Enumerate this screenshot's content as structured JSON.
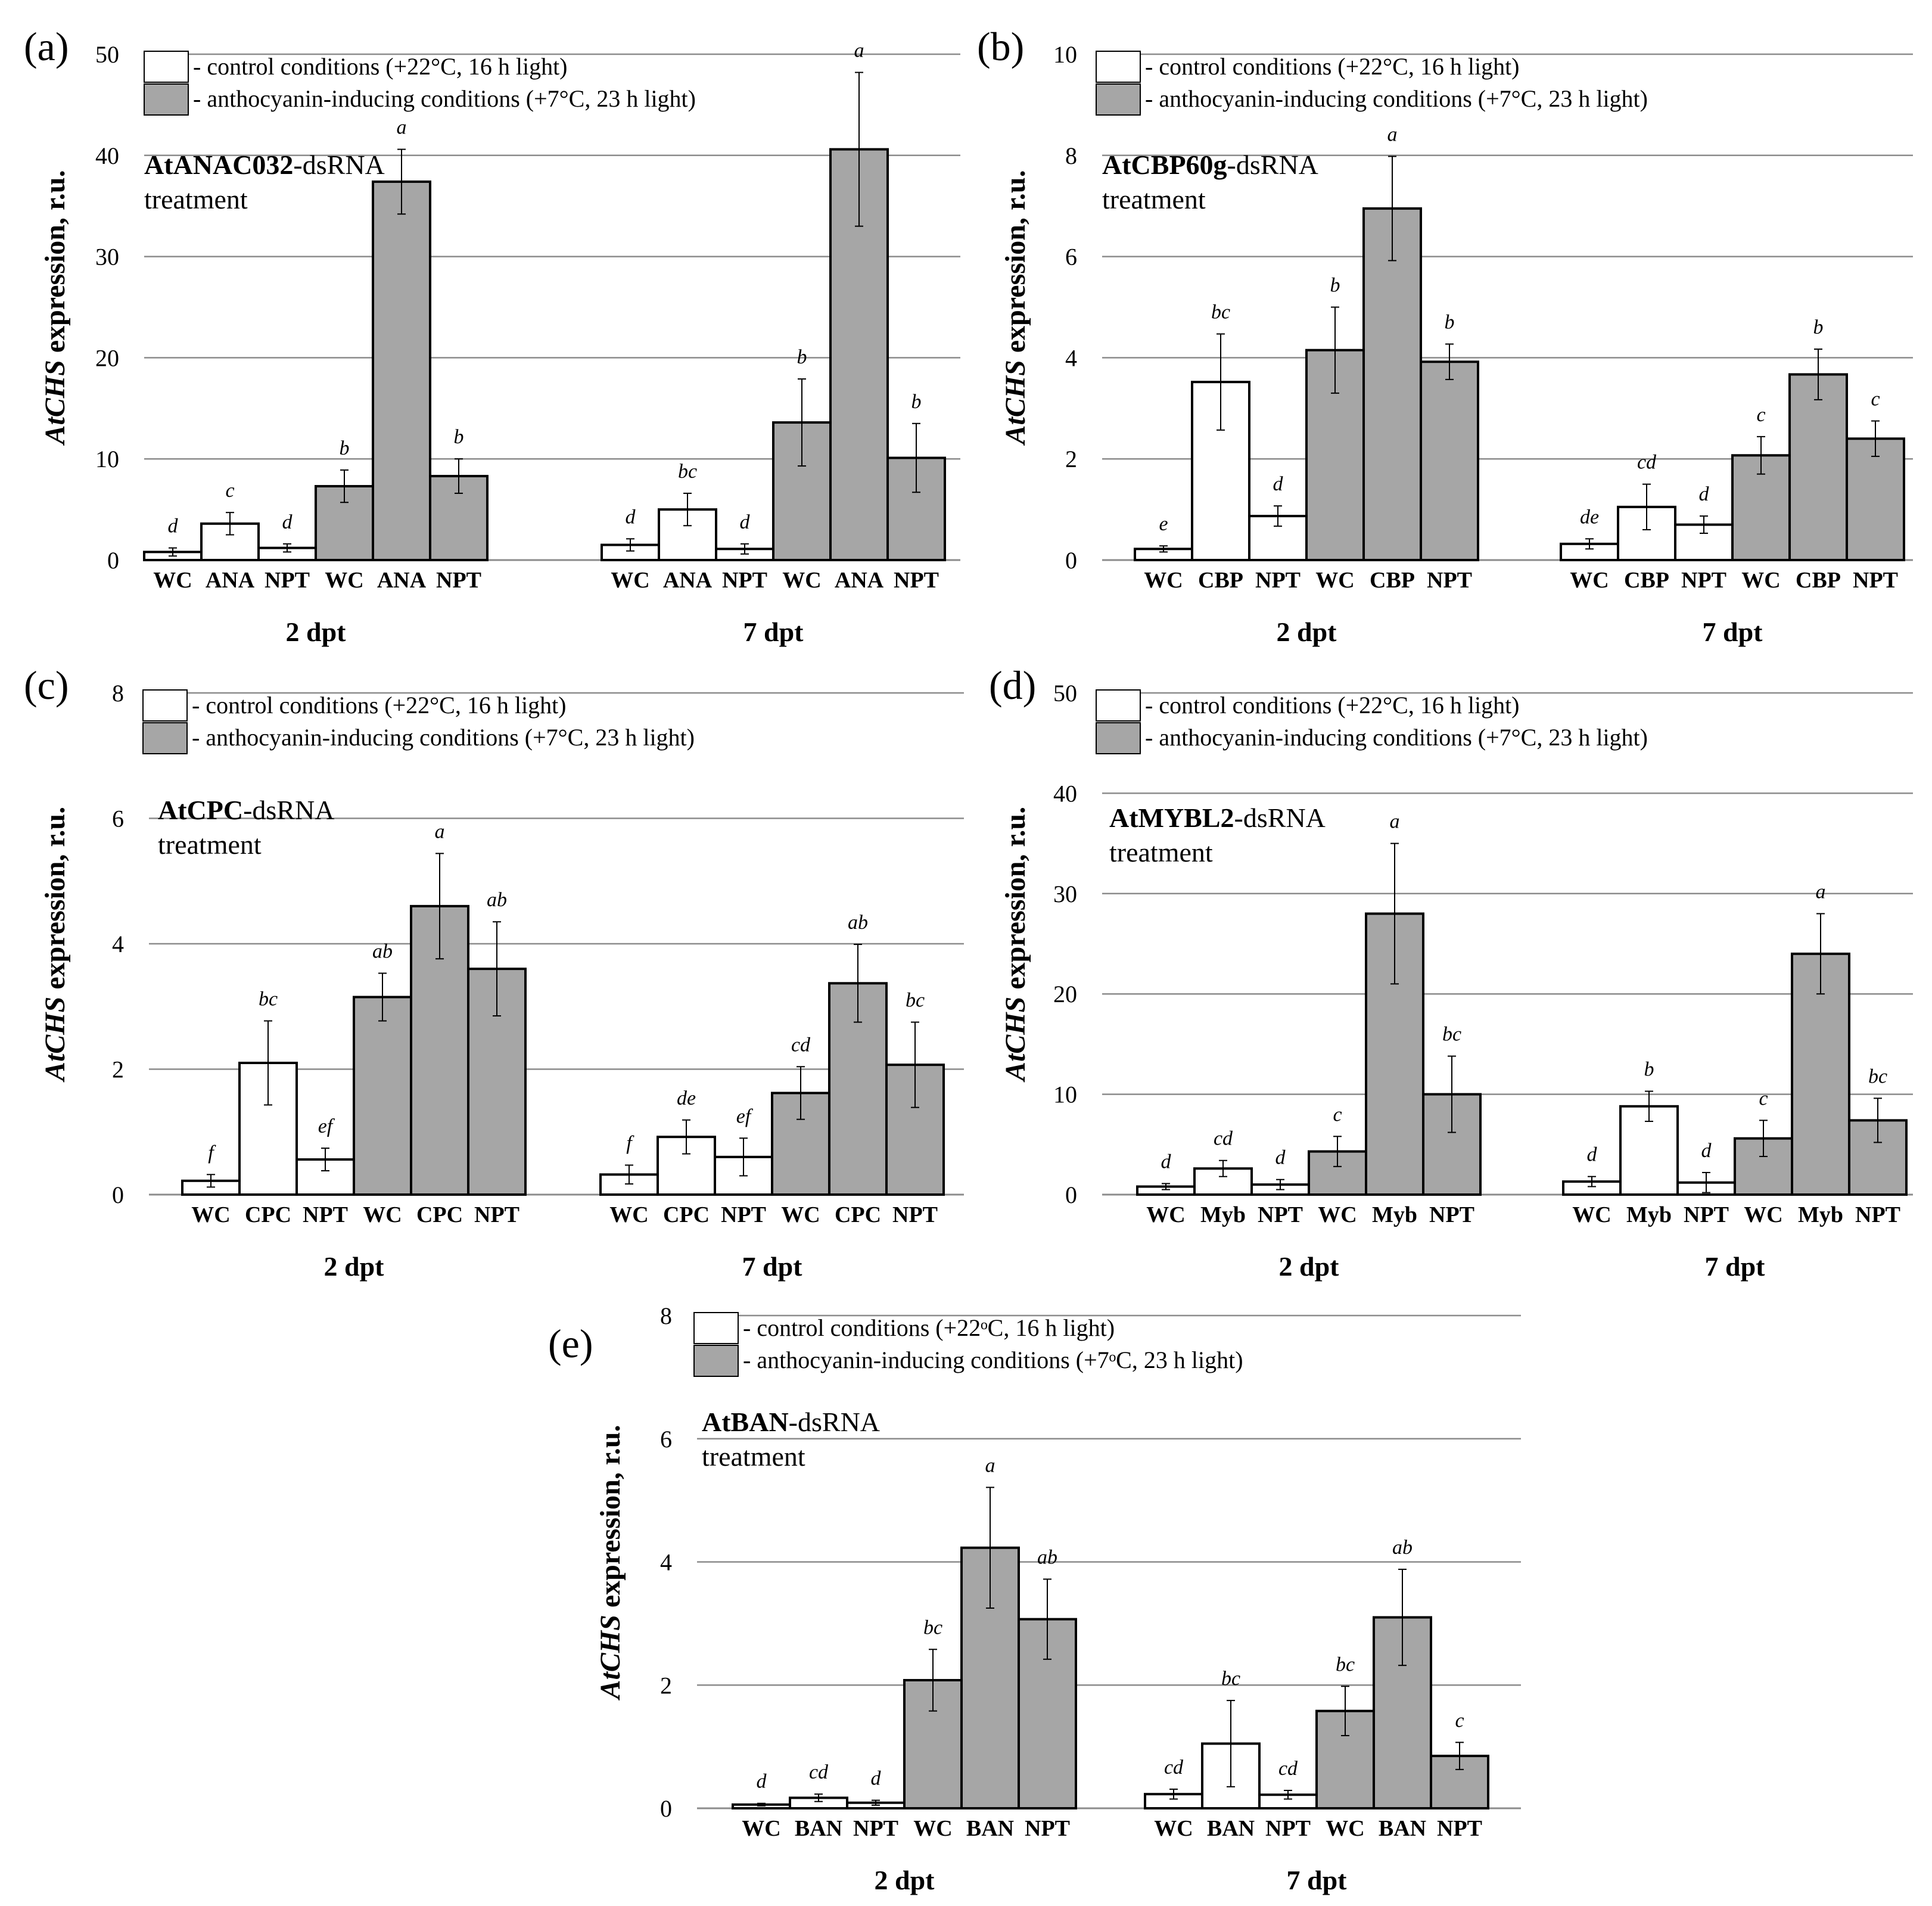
{
  "figure": {
    "description_label": "Five-panel bar chart figure"
  },
  "colors": {
    "white_bar": "#ffffff",
    "grey_bar": "#a6a6a6",
    "grid": "#8c8c8c",
    "axis": "#8c8c8c",
    "bar_stroke": "#000000"
  },
  "chart_data": [
    {
      "type": "bar",
      "panel_label": "(a)",
      "legend": [
        "- control conditions (+22°C, 16 h light)",
        "- anthocyanin-inducing conditions (+7°C, 23 h light)"
      ],
      "treatment_bold": "AtANAC032",
      "treatment_rest": "-dsRNA",
      "treatment_line2": "treatment",
      "ylabel_italic": "AtCHS",
      "ylabel_rest": " expression, r.u.",
      "ylim": [
        0,
        50
      ],
      "yticks": [
        "0",
        "10",
        "20",
        "30",
        "40",
        "50"
      ],
      "groups": [
        {
          "label": "2 dpt",
          "categories": [
            "WC",
            "ANA",
            "NPT",
            "WC",
            "ANA",
            "NPT"
          ],
          "conditions": [
            "control",
            "control",
            "control",
            "inducing",
            "inducing",
            "inducing"
          ],
          "values": [
            0.8,
            3.6,
            1.2,
            7.3,
            37.4,
            8.3
          ],
          "errors": [
            0.4,
            1.1,
            0.4,
            1.6,
            3.2,
            1.7
          ],
          "letters": [
            "d",
            "c",
            "d",
            "b",
            "a",
            "b"
          ]
        },
        {
          "label": "7 dpt",
          "categories": [
            "WC",
            "ANA",
            "NPT",
            "WC",
            "ANA",
            "NPT"
          ],
          "conditions": [
            "control",
            "control",
            "control",
            "inducing",
            "inducing",
            "inducing"
          ],
          "values": [
            1.5,
            5.0,
            1.1,
            13.6,
            40.6,
            10.1
          ],
          "errors": [
            0.6,
            1.6,
            0.5,
            4.3,
            7.6,
            3.4
          ],
          "letters": [
            "d",
            "bc",
            "d",
            "b",
            "a",
            "b"
          ]
        }
      ]
    },
    {
      "type": "bar",
      "panel_label": "(b)",
      "legend": [
        "- control conditions (+22°C, 16 h light)",
        "- anthocyanin-inducing conditions (+7°C, 23 h light)"
      ],
      "treatment_bold": "AtCBP60g",
      "treatment_rest": "-dsRNA",
      "treatment_line2": "treatment",
      "ylabel_italic": "AtCHS",
      "ylabel_rest": " expression, r.u.",
      "ylim": [
        0,
        10
      ],
      "yticks": [
        "0",
        "2",
        "4",
        "6",
        "8",
        "10"
      ],
      "groups": [
        {
          "label": "2 dpt",
          "categories": [
            "WC",
            "CBP",
            "NPT",
            "WC",
            "CBP",
            "NPT"
          ],
          "conditions": [
            "control",
            "control",
            "control",
            "inducing",
            "inducing",
            "inducing"
          ],
          "values": [
            0.22,
            3.52,
            0.87,
            4.15,
            6.95,
            3.92
          ],
          "errors": [
            0.06,
            0.95,
            0.2,
            0.85,
            1.03,
            0.35
          ],
          "letters": [
            "e",
            "bc",
            "d",
            "b",
            "a",
            "b"
          ]
        },
        {
          "label": "7 dpt",
          "categories": [
            "WC",
            "CBP",
            "NPT",
            "WC",
            "CBP",
            "NPT"
          ],
          "conditions": [
            "control",
            "control",
            "control",
            "inducing",
            "inducing",
            "inducing"
          ],
          "values": [
            0.32,
            1.05,
            0.7,
            2.07,
            3.67,
            2.4
          ],
          "errors": [
            0.1,
            0.45,
            0.17,
            0.37,
            0.5,
            0.35
          ],
          "letters": [
            "de",
            "cd",
            "d",
            "c",
            "b",
            "c"
          ]
        }
      ]
    },
    {
      "type": "bar",
      "panel_label": "(c)",
      "legend": [
        "- control conditions (+22°C, 16 h light)",
        "- anthocyanin-inducing conditions (+7°C, 23 h light)"
      ],
      "treatment_bold": "AtCPC",
      "treatment_rest": "-dsRNA",
      "treatment_line2": "treatment",
      "ylabel_italic": "AtCHS",
      "ylabel_rest": " expression, r.u.",
      "ylim": [
        0,
        8
      ],
      "yticks": [
        "0",
        "2",
        "4",
        "6",
        "8"
      ],
      "groups": [
        {
          "label": "2 dpt",
          "categories": [
            "WC",
            "CPC",
            "NPT",
            "WC",
            "CPC",
            "NPT"
          ],
          "conditions": [
            "control",
            "control",
            "control",
            "inducing",
            "inducing",
            "inducing"
          ],
          "values": [
            0.22,
            2.1,
            0.56,
            3.15,
            4.6,
            3.6
          ],
          "errors": [
            0.1,
            0.67,
            0.18,
            0.38,
            0.84,
            0.75
          ],
          "letters": [
            "f",
            "bc",
            "ef",
            "ab",
            "a",
            "ab"
          ]
        },
        {
          "label": "7 dpt",
          "categories": [
            "WC",
            "CPC",
            "NPT",
            "WC",
            "CPC",
            "NPT"
          ],
          "conditions": [
            "control",
            "control",
            "control",
            "inducing",
            "inducing",
            "inducing"
          ],
          "values": [
            0.32,
            0.92,
            0.6,
            1.62,
            3.37,
            2.07
          ],
          "errors": [
            0.15,
            0.27,
            0.3,
            0.42,
            0.62,
            0.68
          ],
          "letters": [
            "f",
            "de",
            "ef",
            "cd",
            "ab",
            "bc"
          ]
        }
      ]
    },
    {
      "type": "bar",
      "panel_label": "(d)",
      "legend": [
        "- control conditions (+22°C, 16 h light)",
        "- anthocyanin-inducing conditions (+7°C, 23 h light)"
      ],
      "treatment_bold": "AtMYBL2",
      "treatment_rest": "-dsRNA",
      "treatment_line2": "treatment",
      "ylabel_italic": "AtCHS",
      "ylabel_rest": " expression, r.u.",
      "ylim": [
        0,
        50
      ],
      "yticks": [
        "0",
        "10",
        "20",
        "30",
        "40",
        "50"
      ],
      "groups": [
        {
          "label": "2 dpt",
          "categories": [
            "WC",
            "Myb",
            "NPT",
            "WC",
            "Myb",
            "NPT"
          ],
          "conditions": [
            "control",
            "control",
            "control",
            "inducing",
            "inducing",
            "inducing"
          ],
          "values": [
            0.8,
            2.6,
            1.0,
            4.3,
            28.0,
            10.0
          ],
          "errors": [
            0.3,
            0.8,
            0.5,
            1.5,
            7.0,
            3.8
          ],
          "letters": [
            "d",
            "cd",
            "d",
            "c",
            "a",
            "bc"
          ]
        },
        {
          "label": "7 dpt",
          "categories": [
            "WC",
            "Myb",
            "NPT",
            "WC",
            "Myb",
            "NPT"
          ],
          "conditions": [
            "control",
            "control",
            "control",
            "inducing",
            "inducing",
            "inducing"
          ],
          "values": [
            1.3,
            8.8,
            1.2,
            5.6,
            24.0,
            7.4
          ],
          "errors": [
            0.5,
            1.5,
            1.0,
            1.8,
            4.0,
            2.2
          ],
          "letters": [
            "d",
            "b",
            "d",
            "c",
            "a",
            "bc"
          ]
        }
      ]
    },
    {
      "type": "bar",
      "panel_label": "(e)",
      "legend": [
        "- control conditions (+22ᵒC, 16 h light)",
        "- anthocyanin-inducing conditions (+7ᵒC, 23 h light)"
      ],
      "treatment_bold": "AtBAN",
      "treatment_rest": "-dsRNA",
      "treatment_line2": "treatment",
      "ylabel_italic": "AtCHS",
      "ylabel_rest": " expression, r.u.",
      "ylim": [
        0,
        8
      ],
      "yticks": [
        "0",
        "2",
        "4",
        "6",
        "8"
      ],
      "groups": [
        {
          "label": "2 dpt",
          "categories": [
            "WC",
            "BAN",
            "NPT",
            "WC",
            "BAN",
            "NPT"
          ],
          "conditions": [
            "control",
            "control",
            "control",
            "inducing",
            "inducing",
            "inducing"
          ],
          "values": [
            0.06,
            0.17,
            0.09,
            2.08,
            4.23,
            3.07
          ],
          "errors": [
            0.02,
            0.06,
            0.04,
            0.5,
            0.98,
            0.65
          ],
          "letters": [
            "d",
            "cd",
            "d",
            "bc",
            "a",
            "ab"
          ]
        },
        {
          "label": "7 dpt",
          "categories": [
            "WC",
            "BAN",
            "NPT",
            "WC",
            "BAN",
            "NPT"
          ],
          "conditions": [
            "control",
            "control",
            "control",
            "inducing",
            "inducing",
            "inducing"
          ],
          "values": [
            0.23,
            1.05,
            0.22,
            1.58,
            3.1,
            0.85
          ],
          "errors": [
            0.08,
            0.7,
            0.07,
            0.4,
            0.78,
            0.22
          ],
          "letters": [
            "cd",
            "bc",
            "cd",
            "bc",
            "ab",
            "c"
          ]
        }
      ]
    }
  ]
}
